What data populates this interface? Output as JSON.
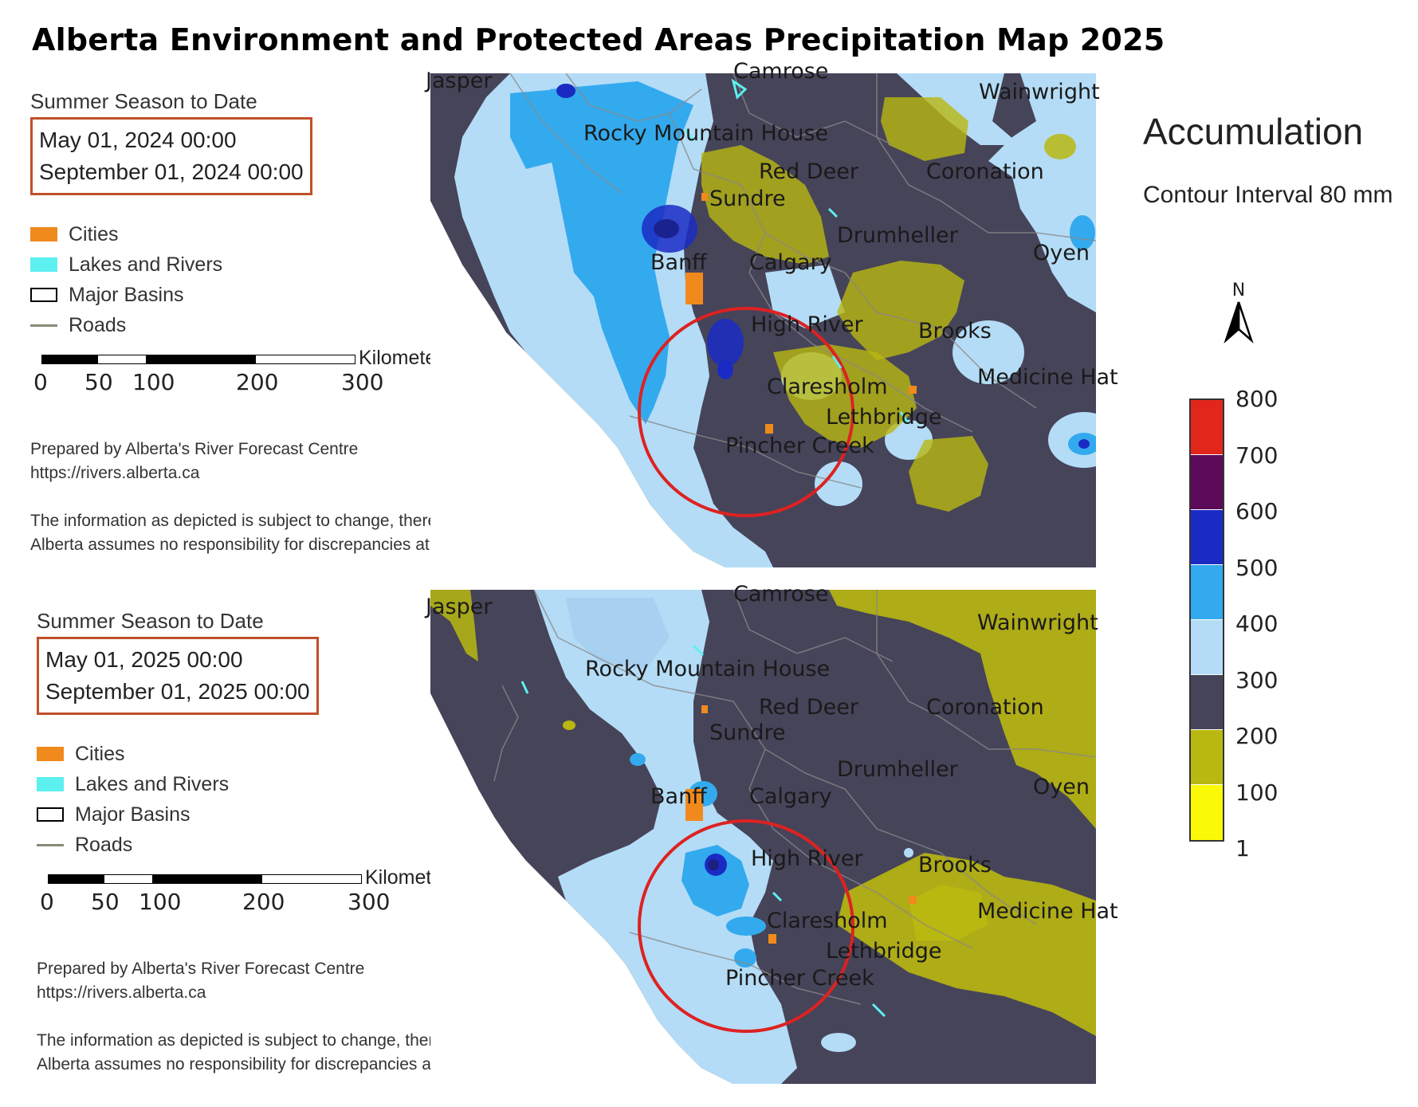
{
  "title": "Alberta Environment and Protected Areas Precipitation Map 2025",
  "panels": [
    {
      "season": "Summer Season to Date",
      "start": "May 01, 2024 00:00",
      "end": "September 01, 2024 00:00",
      "legend": {
        "cities": "Cities",
        "lakes": "Lakes and Rivers",
        "basins": "Major Basins",
        "roads": "Roads"
      },
      "scale": {
        "unit": "Kilometers",
        "ticks": [
          "0",
          "50",
          "100",
          "200",
          "300"
        ]
      },
      "prepared_by": "Prepared by Alberta's River Forecast Centre",
      "url": "https://rivers.alberta.ca",
      "disclaimer_1": "The information as depicted is subject to change, therefore the Government of",
      "disclaimer_2": "Alberta assumes no responsibility for discrepancies at the time of use.",
      "places": [
        "Jasper",
        "Camrose",
        "Wainwright",
        "Rocky Mountain House",
        "Red Deer",
        "Coronation",
        "Sundre",
        "Drumheller",
        "Oyen",
        "Banff",
        "Calgary",
        "High River",
        "Brooks",
        "Medicine Hat",
        "Claresholm",
        "Lethbridge",
        "Pincher Creek"
      ]
    },
    {
      "season": "Summer Season to Date",
      "start": "May 01, 2025 00:00",
      "end": "September 01, 2025 00:00",
      "legend": {
        "cities": "Cities",
        "lakes": "Lakes and Rivers",
        "basins": "Major Basins",
        "roads": "Roads"
      },
      "scale": {
        "unit": "Kilometers",
        "ticks": [
          "0",
          "50",
          "100",
          "200",
          "300"
        ]
      },
      "prepared_by": "Prepared by Alberta's River Forecast Centre",
      "url": "https://rivers.alberta.ca",
      "disclaimer_1": "The information as depicted is subject to change, therefore the Government of",
      "disclaimer_2": "Alberta assumes no responsibility for discrepancies at the time of use.",
      "places": [
        "Jasper",
        "Camrose",
        "Wainwright",
        "Rocky Mountain House",
        "Red Deer",
        "Coronation",
        "Sundre",
        "Drumheller",
        "Oyen",
        "Banff",
        "Calgary",
        "High River",
        "Brooks",
        "Medicine Hat",
        "Claresholm",
        "Lethbridge",
        "Pincher Creek"
      ]
    }
  ],
  "colorbar": {
    "title": "Accumulation",
    "subtitle": "Contour Interval 80 mm",
    "north": "N",
    "ticks": [
      "800",
      "700",
      "600",
      "500",
      "400",
      "300",
      "200",
      "100",
      "1"
    ],
    "colors": [
      "#e3261c",
      "#5c0a5a",
      "#1a2bc4",
      "#33aaee",
      "#b4dcf6",
      "#464459",
      "#b9b810",
      "#fafa06"
    ]
  },
  "colors": {
    "title_box": "#c0502a",
    "highlight_circle": "#dd2222",
    "city": "#f08a1c",
    "lake": "#5cf0f0"
  }
}
